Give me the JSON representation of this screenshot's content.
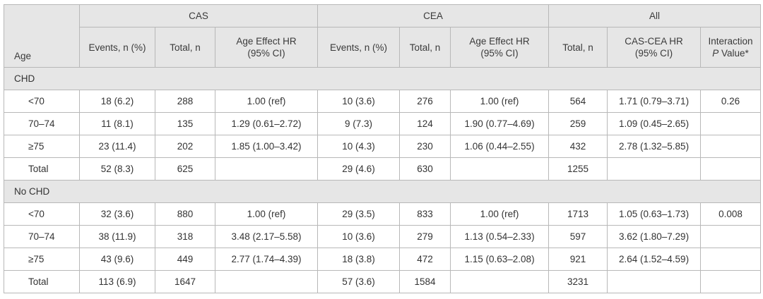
{
  "header": {
    "group_cas": "CAS",
    "group_cea": "CEA",
    "group_all": "All",
    "age": "Age",
    "cas_events": "Events, n (%)",
    "cas_total": "Total, n",
    "cas_hr_line1": "Age Effect HR",
    "cas_hr_line2": "(95% CI)",
    "cea_events": "Events, n (%)",
    "cea_total": "Total, n",
    "cea_hr_line1": "Age Effect HR",
    "cea_hr_line2": "(95% CI)",
    "all_total": "Total, n",
    "all_hr_line1": "CAS-CEA HR",
    "all_hr_line2": "(95% CI)",
    "interaction_line1": "Interaction",
    "interaction_p": "P",
    "interaction_rest": " Value*"
  },
  "sections": [
    {
      "label": "CHD",
      "rows": [
        {
          "age": "<70",
          "cas_events": "18 (6.2)",
          "cas_total": "288",
          "cas_hr": "1.00 (ref)",
          "cea_events": "10 (3.6)",
          "cea_total": "276",
          "cea_hr": "1.00 (ref)",
          "all_total": "564",
          "all_hr": "1.71 (0.79–3.71)",
          "p": "0.26"
        },
        {
          "age": "70–74",
          "cas_events": "11 (8.1)",
          "cas_total": "135",
          "cas_hr": "1.29 (0.61–2.72)",
          "cea_events": "9 (7.3)",
          "cea_total": "124",
          "cea_hr": "1.90 (0.77–4.69)",
          "all_total": "259",
          "all_hr": "1.09 (0.45–2.65)",
          "p": ""
        },
        {
          "age": "≥75",
          "cas_events": "23 (11.4)",
          "cas_total": "202",
          "cas_hr": "1.85 (1.00–3.42)",
          "cea_events": "10 (4.3)",
          "cea_total": "230",
          "cea_hr": "1.06 (0.44–2.55)",
          "all_total": "432",
          "all_hr": "2.78 (1.32–5.85)",
          "p": ""
        },
        {
          "age": "Total",
          "cas_events": "52 (8.3)",
          "cas_total": "625",
          "cas_hr": "",
          "cea_events": "29 (4.6)",
          "cea_total": "630",
          "cea_hr": "",
          "all_total": "1255",
          "all_hr": "",
          "p": ""
        }
      ]
    },
    {
      "label": "No CHD",
      "rows": [
        {
          "age": "<70",
          "cas_events": "32 (3.6)",
          "cas_total": "880",
          "cas_hr": "1.00 (ref)",
          "cea_events": "29 (3.5)",
          "cea_total": "833",
          "cea_hr": "1.00 (ref)",
          "all_total": "1713",
          "all_hr": "1.05 (0.63–1.73)",
          "p": "0.008"
        },
        {
          "age": "70–74",
          "cas_events": "38 (11.9)",
          "cas_total": "318",
          "cas_hr": "3.48 (2.17–5.58)",
          "cea_events": "10 (3.6)",
          "cea_total": "279",
          "cea_hr": "1.13 (0.54–2.33)",
          "all_total": "597",
          "all_hr": "3.62 (1.80–7.29)",
          "p": ""
        },
        {
          "age": "≥75",
          "cas_events": "43 (9.6)",
          "cas_total": "449",
          "cas_hr": "2.77 (1.74–4.39)",
          "cea_events": "18 (3.8)",
          "cea_total": "472",
          "cea_hr": "1.15 (0.63–2.08)",
          "all_total": "921",
          "all_hr": "2.64 (1.52–4.59)",
          "p": ""
        },
        {
          "age": "Total",
          "cas_events": "113 (6.9)",
          "cas_total": "1647",
          "cas_hr": "",
          "cea_events": "57 (3.6)",
          "cea_total": "1584",
          "cea_hr": "",
          "all_total": "3231",
          "all_hr": "",
          "p": ""
        }
      ]
    }
  ]
}
